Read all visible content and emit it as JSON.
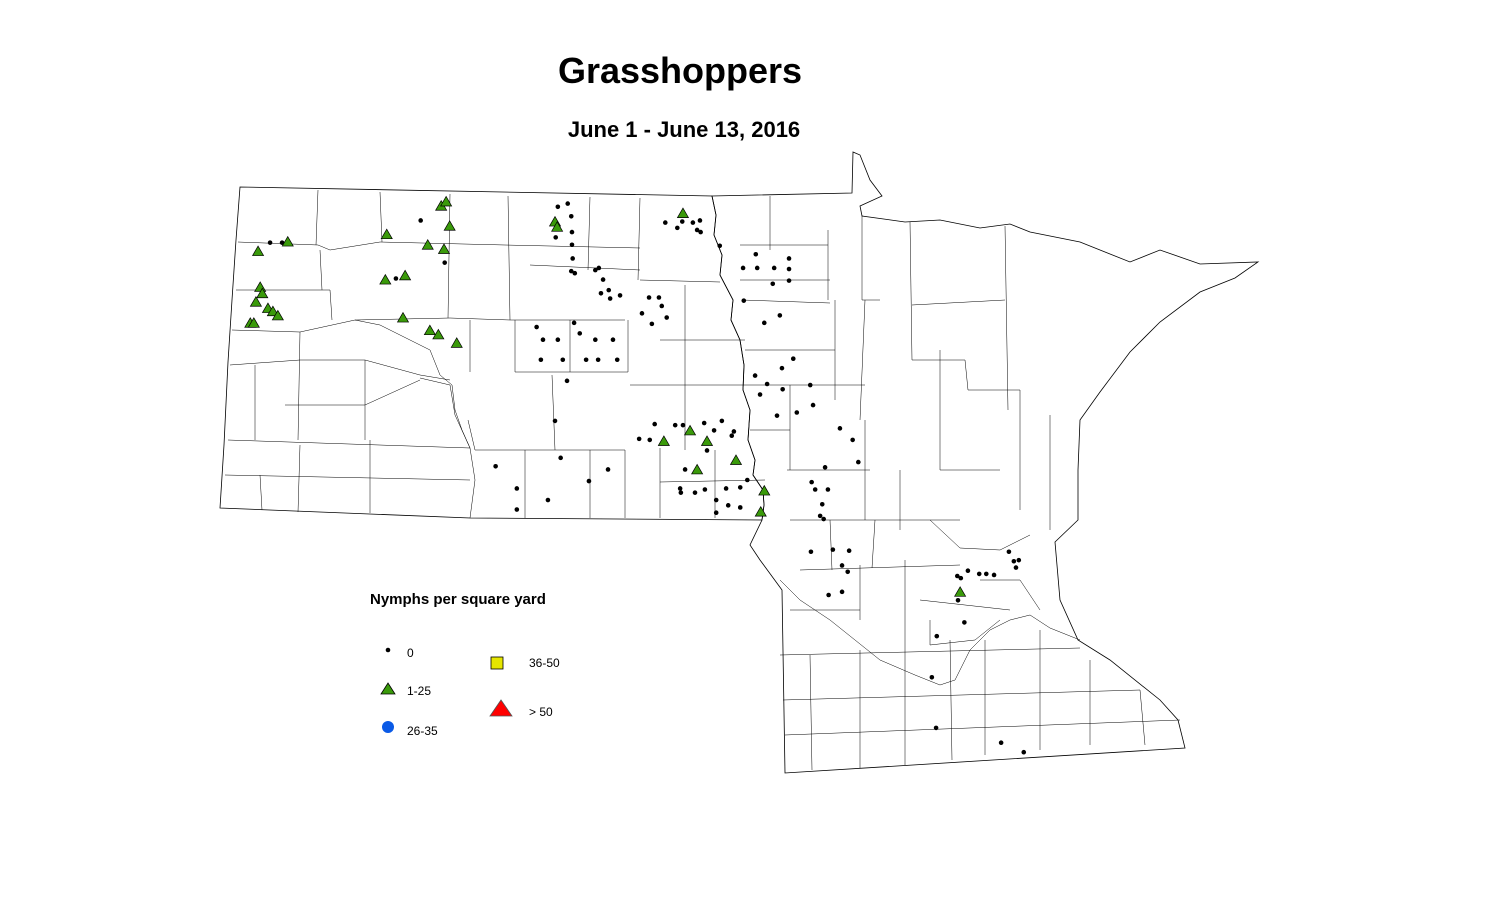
{
  "title": "Grasshoppers",
  "subtitle": "June 1 - June 13, 2016",
  "legend": {
    "title": "Nymphs per square yard",
    "classes": [
      {
        "label": "0",
        "symbol": "dot",
        "color": "#000000"
      },
      {
        "label": "1-25",
        "symbol": "triangle",
        "color": "#3a9a0a"
      },
      {
        "label": "26-35",
        "symbol": "circle",
        "color": "#0a5ae6"
      },
      {
        "label": "36-50",
        "symbol": "square",
        "color": "#e6e600"
      },
      {
        "label": "> 50",
        "symbol": "triangle-large",
        "color": "#ff0000"
      }
    ]
  },
  "map_data": {
    "region": [
      "North Dakota",
      "Minnesota"
    ],
    "boundaries": "counties",
    "points_1_25": [
      [
        -103.65,
        48.42
      ],
      [
        -103.23,
        48.51
      ],
      [
        -101.83,
        48.58
      ],
      [
        -101.06,
        48.85
      ],
      [
        -100.99,
        48.89
      ],
      [
        -100.94,
        48.66
      ],
      [
        -101.25,
        48.48
      ],
      [
        -101.02,
        48.44
      ],
      [
        -101.85,
        48.15
      ],
      [
        -101.57,
        48.19
      ],
      [
        -103.62,
        48.08
      ],
      [
        -103.59,
        48.02
      ],
      [
        -103.68,
        47.94
      ],
      [
        -103.51,
        47.88
      ],
      [
        -103.44,
        47.85
      ],
      [
        -103.37,
        47.81
      ],
      [
        -103.76,
        47.74
      ],
      [
        -103.71,
        47.74
      ],
      [
        -101.6,
        47.79
      ],
      [
        -101.22,
        47.67
      ],
      [
        -101.1,
        47.63
      ],
      [
        -100.84,
        47.55
      ],
      [
        -99.45,
        48.7
      ],
      [
        -99.42,
        48.65
      ],
      [
        -97.64,
        48.78
      ],
      [
        -97.54,
        46.72
      ],
      [
        -97.3,
        46.62
      ],
      [
        -97.91,
        46.62
      ],
      [
        -97.44,
        46.35
      ],
      [
        -96.89,
        46.44
      ],
      [
        -96.49,
        46.15
      ],
      [
        -96.54,
        45.95
      ],
      [
        -93.72,
        45.19
      ]
    ],
    "points_0": [
      [
        -103.48,
        48.5
      ],
      [
        -103.31,
        48.5
      ],
      [
        -101.35,
        48.71
      ],
      [
        -101.7,
        48.16
      ],
      [
        -101.01,
        48.31
      ],
      [
        -99.41,
        48.84
      ],
      [
        -99.27,
        48.87
      ],
      [
        -99.22,
        48.75
      ],
      [
        -99.21,
        48.6
      ],
      [
        -99.21,
        48.48
      ],
      [
        -99.44,
        48.55
      ],
      [
        -99.2,
        48.35
      ],
      [
        -99.22,
        48.23
      ],
      [
        -99.17,
        48.21
      ],
      [
        -98.88,
        48.24
      ],
      [
        -98.83,
        48.26
      ],
      [
        -98.77,
        48.15
      ],
      [
        -98.8,
        48.02
      ],
      [
        -98.69,
        48.05
      ],
      [
        -98.67,
        47.97
      ],
      [
        -98.53,
        48.0
      ],
      [
        -97.89,
        48.69
      ],
      [
        -97.72,
        48.64
      ],
      [
        -97.65,
        48.7
      ],
      [
        -97.5,
        48.69
      ],
      [
        -97.44,
        48.62
      ],
      [
        -97.4,
        48.71
      ],
      [
        -97.39,
        48.6
      ],
      [
        -97.12,
        48.47
      ],
      [
        -96.61,
        48.39
      ],
      [
        -96.79,
        48.26
      ],
      [
        -96.59,
        48.26
      ],
      [
        -96.35,
        48.26
      ],
      [
        -96.14,
        48.35
      ],
      [
        -96.14,
        48.25
      ],
      [
        -96.37,
        48.11
      ],
      [
        -96.14,
        48.14
      ],
      [
        -98.12,
        47.98
      ],
      [
        -97.98,
        47.98
      ],
      [
        -97.94,
        47.9
      ],
      [
        -98.22,
        47.83
      ],
      [
        -98.08,
        47.73
      ],
      [
        -97.87,
        47.79
      ],
      [
        -96.78,
        47.95
      ],
      [
        -96.49,
        47.74
      ],
      [
        -96.27,
        47.81
      ],
      [
        -99.71,
        47.7
      ],
      [
        -99.62,
        47.58
      ],
      [
        -99.41,
        47.58
      ],
      [
        -99.18,
        47.74
      ],
      [
        -99.1,
        47.64
      ],
      [
        -98.88,
        47.58
      ],
      [
        -98.63,
        47.58
      ],
      [
        -99.65,
        47.39
      ],
      [
        -99.34,
        47.39
      ],
      [
        -99.01,
        47.39
      ],
      [
        -98.84,
        47.39
      ],
      [
        -98.57,
        47.39
      ],
      [
        -99.28,
        47.19
      ],
      [
        -96.62,
        47.24
      ],
      [
        -96.45,
        47.16
      ],
      [
        -96.24,
        47.31
      ],
      [
        -96.08,
        47.4
      ],
      [
        -95.84,
        47.15
      ],
      [
        -96.23,
        47.11
      ],
      [
        -96.55,
        47.06
      ],
      [
        -96.31,
        46.86
      ],
      [
        -96.03,
        46.89
      ],
      [
        -95.8,
        46.96
      ],
      [
        -99.45,
        46.81
      ],
      [
        -98.04,
        46.78
      ],
      [
        -97.75,
        46.77
      ],
      [
        -98.26,
        46.64
      ],
      [
        -98.11,
        46.63
      ],
      [
        -97.64,
        46.77
      ],
      [
        -97.34,
        46.79
      ],
      [
        -97.2,
        46.72
      ],
      [
        -97.09,
        46.81
      ],
      [
        -96.95,
        46.67
      ],
      [
        -96.92,
        46.71
      ],
      [
        -97.3,
        46.53
      ],
      [
        -95.42,
        46.74
      ],
      [
        -95.24,
        46.63
      ],
      [
        -95.16,
        46.42
      ],
      [
        -95.63,
        46.37
      ],
      [
        -95.82,
        46.23
      ],
      [
        -97.61,
        46.35
      ],
      [
        -95.77,
        46.16
      ],
      [
        -95.59,
        46.16
      ],
      [
        -98.7,
        46.35
      ],
      [
        -99.37,
        46.46
      ],
      [
        -98.97,
        46.24
      ],
      [
        -100.29,
        46.38
      ],
      [
        -99.99,
        46.17
      ],
      [
        -99.55,
        46.06
      ],
      [
        -99.99,
        45.97
      ],
      [
        -97.68,
        46.17
      ],
      [
        -97.67,
        46.13
      ],
      [
        -97.47,
        46.13
      ],
      [
        -97.33,
        46.16
      ],
      [
        -97.03,
        46.17
      ],
      [
        -96.83,
        46.18
      ],
      [
        -96.73,
        46.25
      ],
      [
        -97.17,
        46.06
      ],
      [
        -97.17,
        45.94
      ],
      [
        -97.0,
        46.01
      ],
      [
        -96.83,
        45.99
      ],
      [
        -95.67,
        46.02
      ],
      [
        -95.7,
        45.91
      ],
      [
        -95.65,
        45.88
      ],
      [
        -95.83,
        45.57
      ],
      [
        -95.52,
        45.59
      ],
      [
        -95.29,
        45.58
      ],
      [
        -95.39,
        45.44
      ],
      [
        -95.31,
        45.38
      ],
      [
        -95.58,
        45.16
      ],
      [
        -95.39,
        45.19
      ],
      [
        -93.03,
        45.57
      ],
      [
        -92.96,
        45.48
      ],
      [
        -92.89,
        45.49
      ],
      [
        -92.93,
        45.42
      ],
      [
        -93.76,
        45.34
      ],
      [
        -93.71,
        45.32
      ],
      [
        -93.61,
        45.39
      ],
      [
        -93.45,
        45.36
      ],
      [
        -93.35,
        45.36
      ],
      [
        -93.24,
        45.35
      ],
      [
        -93.75,
        45.11
      ],
      [
        -93.66,
        44.9
      ],
      [
        -94.05,
        44.77
      ],
      [
        -94.12,
        44.38
      ],
      [
        -94.06,
        43.9
      ],
      [
        -93.14,
        43.76
      ],
      [
        -92.82,
        43.67
      ]
    ],
    "points_26_35": [],
    "points_36_50": [],
    "points_over_50": []
  }
}
